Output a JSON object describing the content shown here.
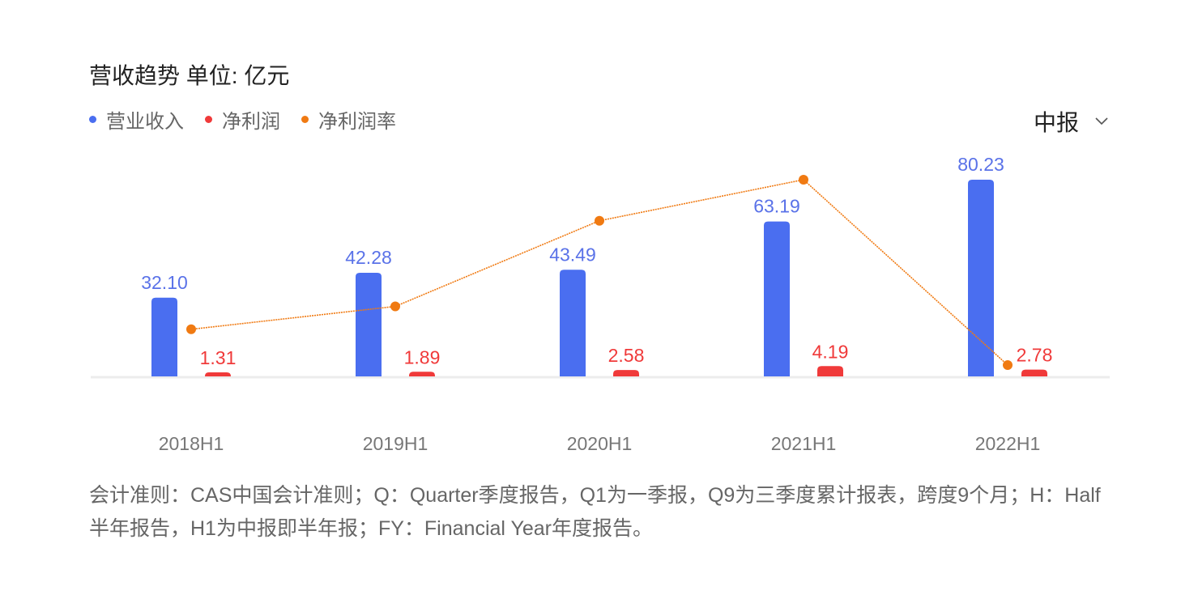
{
  "header": {
    "title": "营收趋势  单位: 亿元",
    "period_selector": {
      "value": "中报",
      "icon": "chevron-down-icon"
    }
  },
  "legend": [
    {
      "label": "营业收入",
      "color": "#4a6ef0"
    },
    {
      "label": "净利润",
      "color": "#f03a3a"
    },
    {
      "label": "净利润率",
      "color": "#f07a12"
    }
  ],
  "chart_data": {
    "type": "bar",
    "categories": [
      "2018H1",
      "2019H1",
      "2020H1",
      "2021H1",
      "2022H1"
    ],
    "series": [
      {
        "name": "营业收入",
        "type": "bar",
        "values": [
          32.1,
          42.28,
          43.49,
          63.19,
          80.23
        ],
        "labels": [
          "32.10",
          "42.28",
          "43.49",
          "63.19",
          "80.23"
        ],
        "color": "#4a6ef0"
      },
      {
        "name": "净利润",
        "type": "bar",
        "values": [
          1.31,
          1.89,
          2.58,
          4.19,
          2.78
        ],
        "labels": [
          "1.31",
          "1.89",
          "2.58",
          "4.19",
          "2.78"
        ],
        "color": "#f03a3a"
      },
      {
        "name": "净利润率",
        "type": "line",
        "values": [
          4.08,
          4.47,
          5.93,
          6.63,
          3.47
        ],
        "unit": "%",
        "color": "#f07a12"
      }
    ],
    "ylim": [
      0,
      80.23
    ],
    "line_ylim": [
      3.47,
      6.63
    ],
    "grid": false
  },
  "footnote": "会计准则：CAS中国会计准则；Q：Quarter季度报告，Q1为一季报，Q9为三季度累计报表，跨度9个月；H：Half半年报告，H1为中报即半年报；FY：Financial Year年度报告。"
}
